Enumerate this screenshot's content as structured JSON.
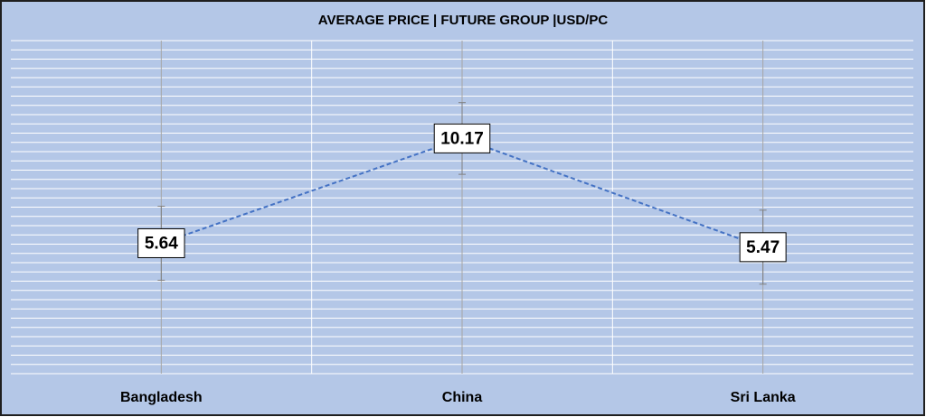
{
  "chart_data": {
    "type": "line",
    "title": "AVERAGE PRICE  |  FUTURE GROUP  |USD/PC",
    "categories": [
      "Bangladesh",
      "China",
      "Sri Lanka"
    ],
    "values": [
      5.64,
      10.17,
      5.47
    ],
    "errors": [
      1.6,
      1.55,
      1.6
    ],
    "color": "#4472c4",
    "line_style": "dashed",
    "ylim": [
      0,
      14.4
    ],
    "yticks": [
      0,
      0.4,
      0.8,
      1.2,
      1.6,
      2,
      2.4,
      2.8,
      3.2,
      3.6,
      4,
      4.4,
      4.8,
      5.2,
      5.6,
      6,
      6.4,
      6.8,
      7.2,
      7.6,
      8,
      8.4,
      8.8,
      9.2,
      9.6,
      10,
      10.4,
      10.8,
      11.2,
      11.6,
      12,
      12.4,
      12.8,
      13.2,
      13.6,
      14,
      14.4
    ],
    "grid": true
  }
}
